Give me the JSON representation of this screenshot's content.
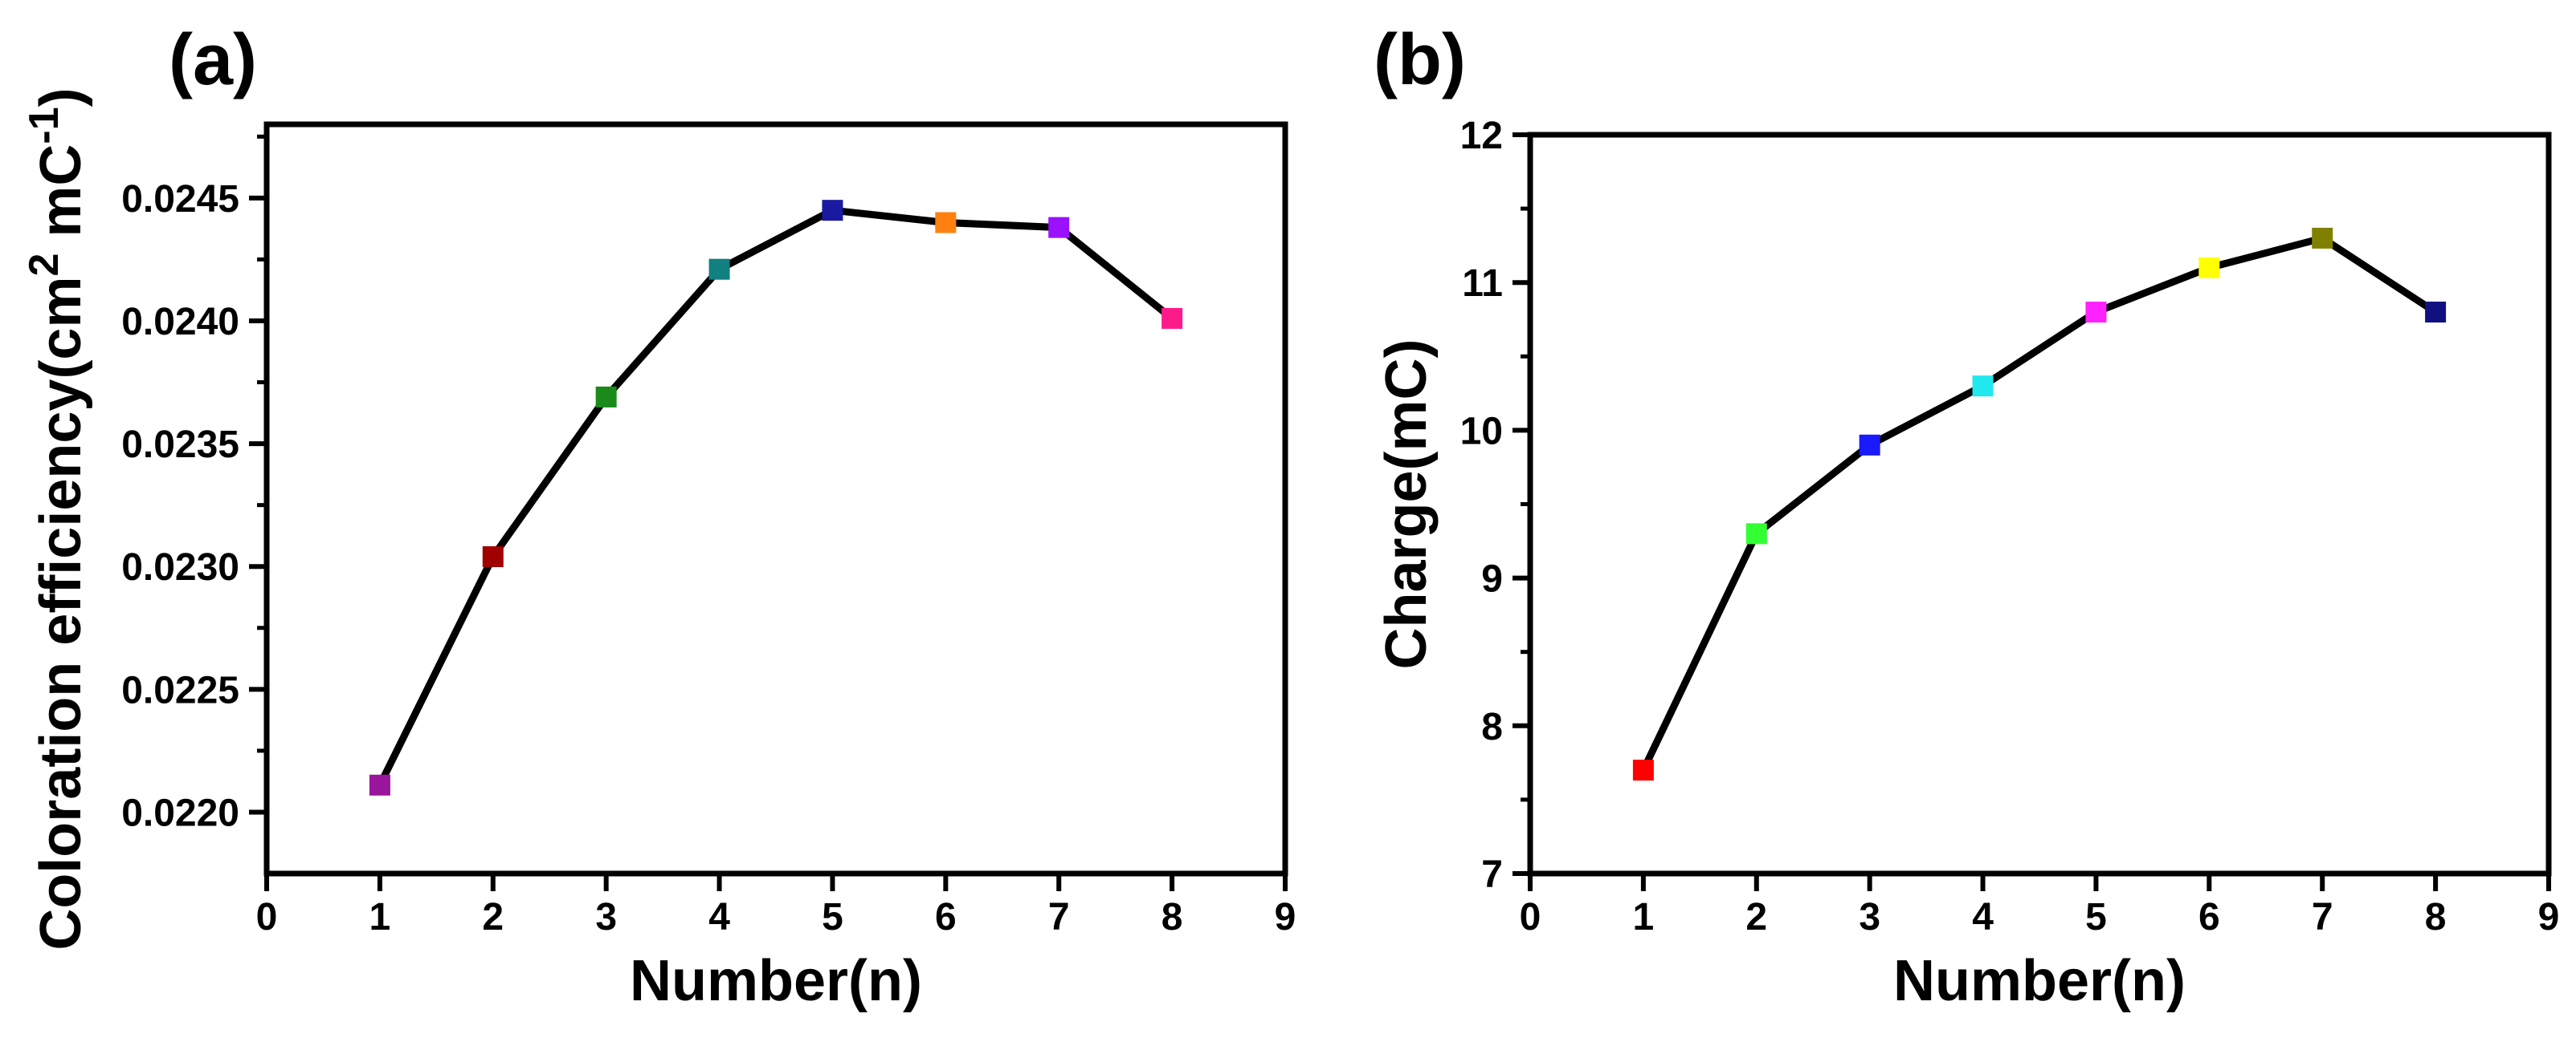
{
  "chart_data": [
    {
      "type": "line",
      "panel_label": "(a)",
      "xlabel": "Number(n)",
      "ylabel": "Coloration efficiency(cm",
      "ylabel_sup1": "2",
      "ylabel_mid": " mC",
      "ylabel_sup2": "-1",
      "ylabel_end": ")",
      "xlim": [
        0,
        9
      ],
      "ylim": [
        0.02175,
        0.0248
      ],
      "xticks": [
        0,
        1,
        2,
        3,
        4,
        5,
        6,
        7,
        8,
        9
      ],
      "yticks": [
        0.022,
        0.0225,
        0.023,
        0.0235,
        0.024,
        0.0245
      ],
      "ytick_labels": [
        "0.0220",
        "0.0225",
        "0.0230",
        "0.0235",
        "0.0240",
        "0.0245"
      ],
      "x": [
        1,
        2,
        3,
        4,
        5,
        6,
        7,
        8
      ],
      "y": [
        0.02211,
        0.02304,
        0.02369,
        0.02421,
        0.02445,
        0.0244,
        0.02438,
        0.02401
      ],
      "marker_colors": [
        "#99159c",
        "#a00000",
        "#1a8a1a",
        "#108080",
        "#1a1aa0",
        "#ff8010",
        "#9a10ff",
        "#ff1a8a"
      ]
    },
    {
      "type": "line",
      "panel_label": "(b)",
      "xlabel": "Number(n)",
      "ylabel": "Charge(mC)",
      "xlim": [
        0,
        9
      ],
      "ylim": [
        7,
        12
      ],
      "xticks": [
        0,
        1,
        2,
        3,
        4,
        5,
        6,
        7,
        8,
        9
      ],
      "yticks": [
        7,
        8,
        9,
        10,
        11,
        12
      ],
      "ytick_labels": [
        "7",
        "8",
        "9",
        "10",
        "11",
        "12"
      ],
      "x": [
        1,
        2,
        3,
        4,
        5,
        6,
        7,
        8
      ],
      "y": [
        7.7,
        9.3,
        9.9,
        10.3,
        10.8,
        11.1,
        11.3,
        10.8
      ],
      "marker_colors": [
        "#ff0000",
        "#33ff33",
        "#1a1aff",
        "#22e8f0",
        "#ff22ff",
        "#ffff00",
        "#808000",
        "#101080"
      ]
    }
  ]
}
